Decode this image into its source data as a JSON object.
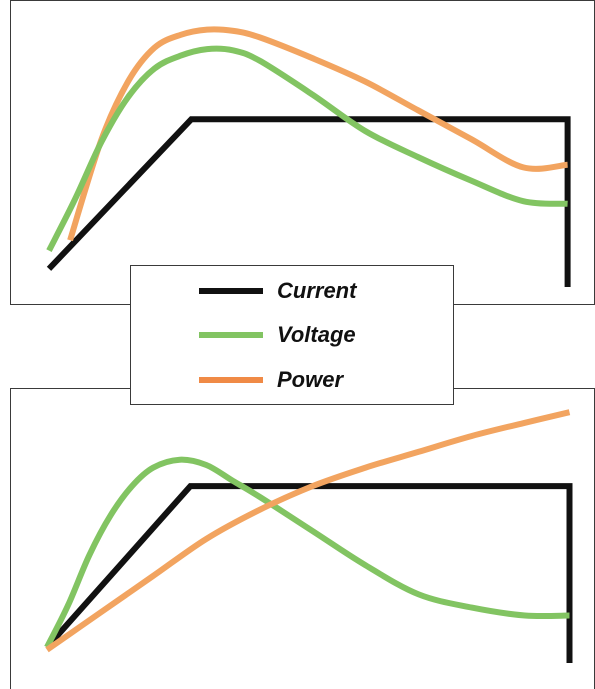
{
  "chart_data": [
    {
      "type": "line",
      "title": "",
      "xlabel": "",
      "ylabel": "",
      "grid": false,
      "legend_position": "bottom-center",
      "series": [
        {
          "name": "Current",
          "color": "#111111",
          "x": [
            0.0,
            0.27,
            0.984,
            0.984
          ],
          "y": [
            0.07,
            0.645,
            0.645,
            0.0
          ]
        },
        {
          "name": "Voltage",
          "color": "#82c462",
          "x": [
            0.0,
            0.05,
            0.1,
            0.15,
            0.2,
            0.25,
            0.3,
            0.35,
            0.4,
            0.5,
            0.6,
            0.7,
            0.8,
            0.9,
            0.984
          ],
          "y": [
            0.14,
            0.34,
            0.56,
            0.73,
            0.84,
            0.89,
            0.915,
            0.91,
            0.87,
            0.74,
            0.6,
            0.5,
            0.41,
            0.33,
            0.32
          ]
        },
        {
          "name": "Power",
          "color": "#f2a460",
          "x": [
            0.04,
            0.1,
            0.15,
            0.2,
            0.25,
            0.3,
            0.35,
            0.4,
            0.5,
            0.6,
            0.7,
            0.8,
            0.9,
            0.984
          ],
          "y": [
            0.18,
            0.57,
            0.79,
            0.92,
            0.97,
            0.99,
            0.985,
            0.96,
            0.88,
            0.79,
            0.68,
            0.57,
            0.46,
            0.47
          ]
        }
      ]
    },
    {
      "type": "line",
      "title": "",
      "xlabel": "",
      "ylabel": "",
      "grid": false,
      "series": [
        {
          "name": "Current",
          "color": "#111111",
          "x": [
            0.0,
            0.27,
            0.984,
            0.984
          ],
          "y": [
            0.06,
            0.67,
            0.67,
            0.0
          ]
        },
        {
          "name": "Voltage",
          "color": "#82c462",
          "x": [
            0.0,
            0.04,
            0.08,
            0.12,
            0.16,
            0.2,
            0.25,
            0.3,
            0.35,
            0.4,
            0.5,
            0.6,
            0.7,
            0.8,
            0.9,
            0.984
          ],
          "y": [
            0.06,
            0.22,
            0.41,
            0.56,
            0.67,
            0.74,
            0.77,
            0.75,
            0.69,
            0.63,
            0.5,
            0.37,
            0.26,
            0.21,
            0.18,
            0.18
          ]
        },
        {
          "name": "Power",
          "color": "#f2a460",
          "x": [
            0.0,
            0.1,
            0.2,
            0.3,
            0.4,
            0.5,
            0.6,
            0.7,
            0.8,
            0.9,
            0.984
          ],
          "y": [
            0.05,
            0.19,
            0.33,
            0.47,
            0.58,
            0.67,
            0.74,
            0.8,
            0.86,
            0.91,
            0.95
          ]
        }
      ]
    }
  ],
  "legend": {
    "items": [
      {
        "label": "Current",
        "color": "#111111"
      },
      {
        "label": "Voltage",
        "color": "#82c462"
      },
      {
        "label": "Power",
        "color": "#f2a460"
      }
    ]
  }
}
